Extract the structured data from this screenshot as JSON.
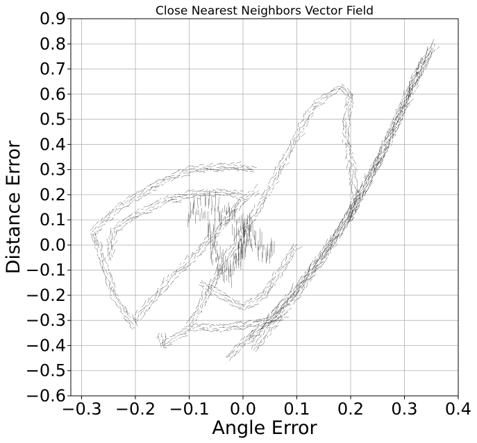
{
  "chart_data": {
    "type": "quiver",
    "title": "Close Nearest Neighbors Vector Field",
    "xlabel": "Angle Error",
    "ylabel": "Distance Error",
    "xlim": [
      -0.32,
      0.4
    ],
    "ylim": [
      -0.6,
      0.9
    ],
    "xticks": [
      -0.3,
      -0.2,
      -0.1,
      0.0,
      0.1,
      0.2,
      0.3,
      0.4
    ],
    "xtick_labels": [
      "−0.3",
      "−0.2",
      "−0.1",
      "0.0",
      "0.1",
      "0.2",
      "0.3",
      "0.4"
    ],
    "yticks": [
      -0.6,
      -0.5,
      -0.4,
      -0.3,
      -0.2,
      -0.1,
      0.0,
      0.1,
      0.2,
      0.3,
      0.4,
      0.5,
      0.6,
      0.7,
      0.8,
      0.9
    ],
    "ytick_labels": [
      "−0.6",
      "−0.5",
      "−0.4",
      "−0.3",
      "−0.2",
      "−0.1",
      "0.0",
      "0.1",
      "0.2",
      "0.3",
      "0.4",
      "0.5",
      "0.6",
      "0.7",
      "0.8",
      "0.9"
    ],
    "grid": true,
    "arrow_color": "#000000",
    "grid_color": "#b0b0b0",
    "series": [
      {
        "points": [
          [
            0.02,
            -0.42
          ],
          [
            0.08,
            -0.25
          ],
          [
            0.15,
            -0.05
          ],
          [
            0.22,
            0.2
          ],
          [
            0.28,
            0.45
          ],
          [
            0.33,
            0.72
          ],
          [
            0.36,
            0.8
          ]
        ],
        "direction": "along"
      },
      {
        "points": [
          [
            -0.03,
            -0.45
          ],
          [
            0.05,
            -0.3
          ],
          [
            0.12,
            -0.12
          ],
          [
            0.2,
            0.12
          ],
          [
            0.26,
            0.38
          ],
          [
            0.31,
            0.62
          ],
          [
            0.35,
            0.78
          ]
        ],
        "direction": "along"
      },
      {
        "points": [
          [
            0.01,
            -0.38
          ],
          [
            0.1,
            -0.18
          ],
          [
            0.17,
            0.02
          ],
          [
            0.24,
            0.28
          ],
          [
            0.3,
            0.55
          ],
          [
            0.34,
            0.74
          ]
        ],
        "direction": "along"
      },
      {
        "points": [
          [
            -0.1,
            -0.32
          ],
          [
            -0.08,
            -0.25
          ],
          [
            -0.03,
            -0.05
          ],
          [
            0.03,
            0.15
          ],
          [
            0.08,
            0.35
          ],
          [
            0.13,
            0.55
          ],
          [
            0.18,
            0.63
          ],
          [
            0.2,
            0.6
          ],
          [
            0.19,
            0.45
          ],
          [
            0.21,
            0.2
          ],
          [
            0.2,
            0.1
          ]
        ],
        "direction": "along"
      },
      {
        "points": [
          [
            -0.2,
            -0.33
          ],
          [
            -0.24,
            -0.2
          ],
          [
            -0.27,
            0.0
          ],
          [
            -0.28,
            0.05
          ],
          [
            -0.23,
            0.15
          ],
          [
            -0.16,
            0.24
          ],
          [
            -0.1,
            0.3
          ],
          [
            -0.03,
            0.31
          ],
          [
            0.0,
            0.31
          ],
          [
            0.02,
            0.3
          ]
        ],
        "direction": "along"
      },
      {
        "points": [
          [
            -0.2,
            -0.3
          ],
          [
            -0.14,
            -0.15
          ],
          [
            -0.08,
            -0.02
          ],
          [
            -0.03,
            0.1
          ],
          [
            0.0,
            0.18
          ],
          [
            0.03,
            0.22
          ]
        ],
        "direction": "along"
      },
      {
        "points": [
          [
            -0.25,
            -0.06
          ],
          [
            -0.24,
            0.06
          ],
          [
            -0.2,
            0.12
          ],
          [
            -0.14,
            0.18
          ],
          [
            -0.1,
            0.2
          ],
          [
            -0.05,
            0.21
          ],
          [
            0.0,
            0.2
          ]
        ],
        "direction": "along"
      },
      {
        "points": [
          [
            -0.15,
            -0.35
          ],
          [
            -0.15,
            -0.4
          ],
          [
            -0.1,
            -0.33
          ],
          [
            -0.05,
            -0.33
          ],
          [
            0.0,
            -0.32
          ],
          [
            0.05,
            -0.3
          ],
          [
            0.08,
            -0.27
          ]
        ],
        "direction": "along"
      },
      {
        "points": [
          [
            -0.08,
            -0.15
          ],
          [
            -0.04,
            -0.2
          ],
          [
            0.0,
            -0.25
          ],
          [
            0.04,
            -0.2
          ],
          [
            0.07,
            -0.1
          ],
          [
            0.1,
            0.0
          ]
        ],
        "direction": "along"
      },
      {
        "points": [
          [
            -0.1,
            0.12
          ],
          [
            -0.07,
            0.15
          ],
          [
            -0.04,
            0.14
          ],
          [
            -0.02,
            0.1
          ],
          [
            0.0,
            0.05
          ],
          [
            0.03,
            0.0
          ],
          [
            0.06,
            -0.05
          ]
        ],
        "direction": "vertical"
      },
      {
        "points": [
          [
            -0.06,
            0.05
          ],
          [
            -0.05,
            -0.05
          ],
          [
            -0.03,
            -0.12
          ],
          [
            -0.01,
            -0.06
          ],
          [
            0.0,
            0.02
          ],
          [
            0.02,
            0.08
          ]
        ],
        "direction": "vertical"
      }
    ]
  }
}
